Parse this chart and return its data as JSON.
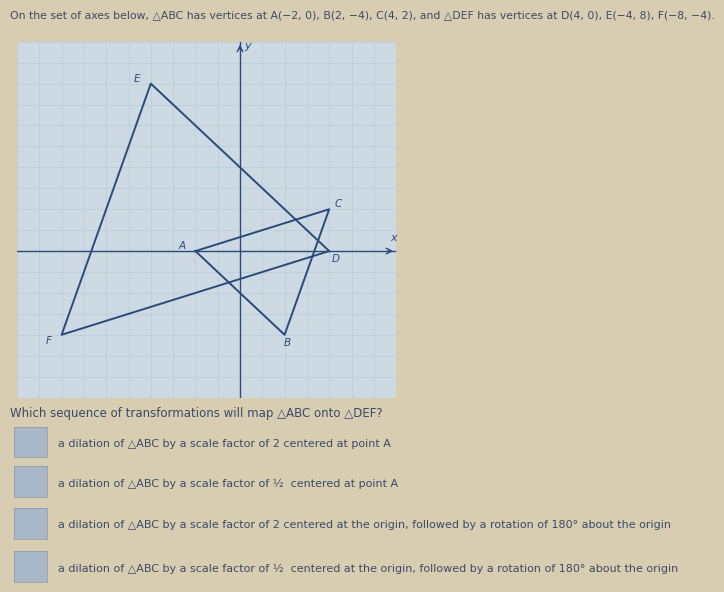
{
  "title": "On the set of axes below, △ABC has vertices at A(−2, 0), B(2, −4), C(4, 2), and △DEF has vertices at D(4, 0), E(−4, 8), F(−8, −4).",
  "ABC": {
    "A": [
      -2,
      0
    ],
    "B": [
      2,
      -4
    ],
    "C": [
      4,
      2
    ]
  },
  "DEF": {
    "D": [
      4,
      0
    ],
    "E": [
      -4,
      8
    ],
    "F": [
      -8,
      -4
    ]
  },
  "xlim": [
    -10,
    7
  ],
  "ylim": [
    -7,
    10
  ],
  "grid_color": "#b8cdd8",
  "triangle_color": "#2a4a7a",
  "ax_bg": "#cddae3",
  "question": "Which sequence of transformations will map △ABC onto △DEF?",
  "options": [
    "a dilation of △ABC by a scale factor of 2 centered at point A",
    "a dilation of △ABC by a scale factor of ½  centered at point A",
    "a dilation of △ABC by a scale factor of 2 centered at the origin, followed by a rotation of 180° about the origin",
    "a dilation of △ABC by a scale factor of ½  centered at the origin, followed by a rotation of 180° about the origin"
  ],
  "figure_bg": "#d8cdb0",
  "label_color": "#2a4a7a",
  "label_fontsize": 7.5,
  "axis_color": "#2a4a7a",
  "text_color": "#3a4a6a",
  "title_fontsize": 7.8,
  "question_fontsize": 8.5,
  "option_fontsize": 8.0,
  "box_color": "#a8b8c8"
}
